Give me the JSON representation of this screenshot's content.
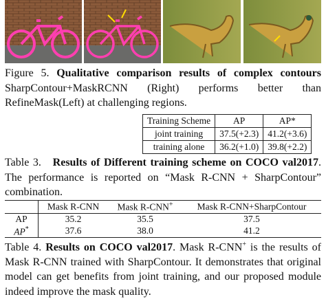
{
  "figure5": {
    "label": "Figure 5.",
    "title": "Qualitative comparison results of complex contours",
    "text": "SharpContour+MaskRCNN (Right) performs better than RefineMask(Left) at challenging regions."
  },
  "table3": {
    "header": [
      "Training Scheme",
      "AP",
      "AP*"
    ],
    "rows": [
      [
        "joint training",
        "37.5(+2.3)",
        "41.2(+3.6)"
      ],
      [
        "training alone",
        "36.2(+1.0)",
        "39.8(+2.2)"
      ]
    ]
  },
  "table3_caption": {
    "label": "Table 3.",
    "title": "Results of Different training scheme on COCO val2017",
    "text": ". The performance is reported on “Mask R-CNN + SharpContour” combination."
  },
  "table4": {
    "header": [
      "Mask R-CNN",
      {
        "text": "Mask R-CNN",
        "sup": "+"
      },
      "Mask R-CNN+SharpContour"
    ],
    "rows": [
      {
        "label": "AP",
        "values": [
          "35.2",
          "35.5",
          "37.5"
        ]
      },
      {
        "label": "AP",
        "sup": "*",
        "values": [
          "37.6",
          "38.0",
          "41.2"
        ]
      }
    ]
  },
  "table4_caption": {
    "label": "Table 4.",
    "title": "Results on COCO val2017",
    "text_before": ". Mask R-CNN",
    "sup": "+",
    "text_after": " is the results of Mask R-CNN trained with SharpContour. It demonstrates that original model can get benefits from joint training, and our proposed module indeed improve the mask quality."
  }
}
